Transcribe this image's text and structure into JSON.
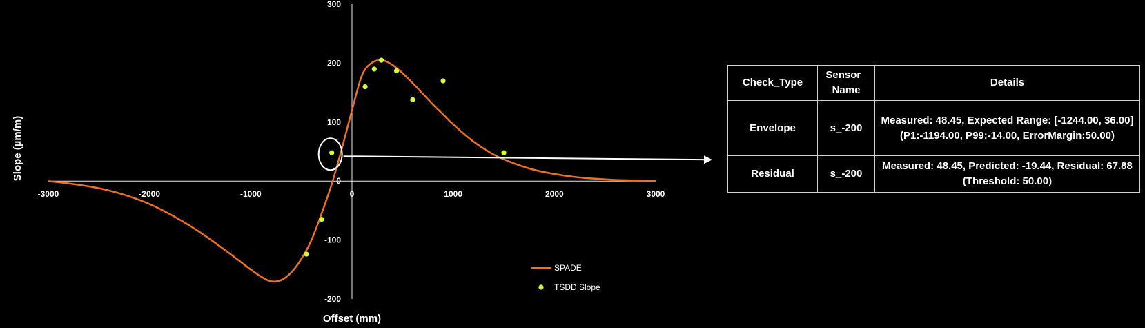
{
  "chart_data": {
    "type": "line",
    "title": "",
    "xlabel": "Offset (mm)",
    "ylabel": "Slope (µm/m)",
    "xlim": [
      -3000,
      3000
    ],
    "ylim": [
      -200,
      300
    ],
    "x_ticks": [
      -3000,
      -2000,
      -1000,
      0,
      1000,
      2000,
      3000
    ],
    "y_ticks": [
      -200,
      -100,
      0,
      100,
      200,
      300
    ],
    "grid": false,
    "legend_position": "bottom-right",
    "series": [
      {
        "name": "SPADE",
        "type": "line",
        "color": "#f07020",
        "x": [
          -3000,
          -2800,
          -2600,
          -2400,
          -2200,
          -2000,
          -1800,
          -1600,
          -1400,
          -1200,
          -1000,
          -900,
          -800,
          -700,
          -600,
          -500,
          -400,
          -300,
          -200,
          -100,
          0,
          100,
          200,
          300,
          400,
          500,
          600,
          700,
          800,
          900,
          1000,
          1200,
          1400,
          1600,
          1800,
          2000,
          2200,
          2400,
          2600,
          2800,
          3000
        ],
        "y": [
          0,
          -4,
          -9,
          -16,
          -26,
          -39,
          -56,
          -76,
          -99,
          -124,
          -150,
          -162,
          -170,
          -168,
          -155,
          -132,
          -100,
          -55,
          -5,
          55,
          120,
          180,
          201,
          205,
          197,
          183,
          166,
          148,
          130,
          113,
          96,
          67,
          45,
          30,
          19,
          12,
          7,
          4,
          2,
          1,
          0
        ]
      },
      {
        "name": "TSDD Slope",
        "type": "scatter",
        "color": "#d4ff33",
        "x": [
          -450,
          -300,
          -200,
          130,
          220,
          290,
          440,
          600,
          900,
          1500
        ],
        "y": [
          -124,
          -65,
          48,
          160,
          190,
          205,
          187,
          138,
          170,
          48
        ]
      }
    ],
    "annotation": {
      "type": "callout",
      "target_series": "TSDD Slope",
      "target_x": -200,
      "target_y": 48
    }
  },
  "table": {
    "headers": [
      "Check_Type",
      "Sensor_\nName",
      "Details"
    ],
    "rows": [
      [
        "Envelope",
        "s_-200",
        "Measured: 48.45, Expected Range: [-1244.00, 36.00] (P1:-1194.00, P99:-14.00, ErrorMargin:50.00)"
      ],
      [
        "Residual",
        "s_-200",
        "Measured: 48.45, Predicted: -19.44, Residual: 67.88 (Threshold: 50.00)"
      ]
    ]
  }
}
